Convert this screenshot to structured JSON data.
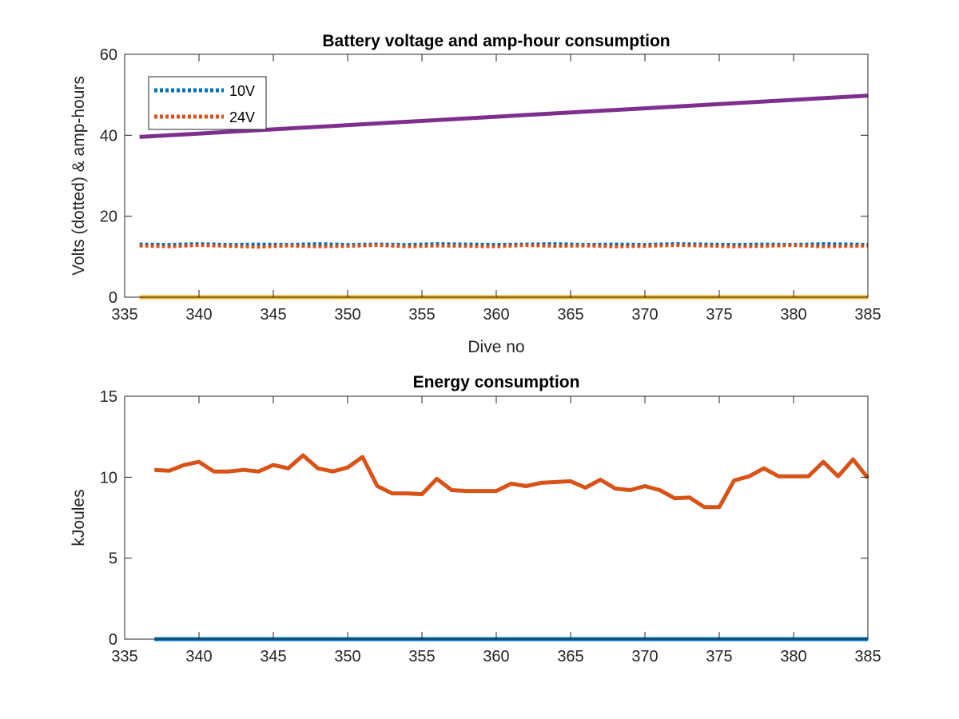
{
  "chart_data": [
    {
      "type": "line",
      "title": "Battery voltage and amp-hour consumption",
      "xlabel": "Dive no",
      "ylabel": "Volts (dotted) & amp-hours",
      "xlim": [
        335,
        385
      ],
      "ylim": [
        0,
        60
      ],
      "xticks": [
        335,
        340,
        345,
        350,
        355,
        360,
        365,
        370,
        375,
        380,
        385
      ],
      "yticks": [
        0,
        20,
        40,
        60
      ],
      "grid": false,
      "legend_position": "top-left",
      "series": [
        {
          "name": "10V",
          "style": "dotted",
          "color": "#0072BD",
          "in_legend": true,
          "x": [
            336,
            338,
            340,
            342,
            344,
            346,
            348,
            350,
            352,
            354,
            356,
            358,
            360,
            362,
            364,
            366,
            368,
            370,
            372,
            374,
            376,
            378,
            380,
            382,
            384,
            385
          ],
          "y": [
            13.1,
            13.0,
            13.2,
            13.0,
            13.1,
            13.0,
            13.2,
            13.0,
            13.1,
            13.0,
            13.2,
            13.1,
            13.0,
            13.1,
            13.2,
            13.0,
            13.1,
            13.0,
            13.2,
            13.1,
            13.0,
            13.1,
            13.0,
            13.2,
            13.1,
            13.0
          ]
        },
        {
          "name": "24V",
          "style": "dotted",
          "color": "#D95319",
          "in_legend": true,
          "x": [
            336,
            338,
            340,
            342,
            344,
            346,
            348,
            350,
            352,
            354,
            356,
            358,
            360,
            362,
            364,
            366,
            368,
            370,
            372,
            374,
            376,
            378,
            380,
            382,
            384,
            385
          ],
          "y": [
            12.7,
            12.5,
            12.8,
            12.6,
            12.4,
            12.7,
            12.5,
            12.6,
            12.8,
            12.5,
            12.7,
            12.6,
            12.5,
            12.8,
            12.6,
            12.7,
            12.5,
            12.6,
            12.8,
            12.7,
            12.5,
            12.6,
            12.8,
            12.5,
            12.6,
            12.7
          ]
        },
        {
          "name": "",
          "style": "solid",
          "color": "#EDB120",
          "in_legend": false,
          "x": [
            336,
            385
          ],
          "y": [
            0,
            0
          ]
        },
        {
          "name": "",
          "style": "solid",
          "color": "#7E2F8E",
          "in_legend": false,
          "x": [
            336,
            385
          ],
          "y": [
            39.6,
            49.8
          ]
        }
      ]
    },
    {
      "type": "line",
      "title": "Energy consumption",
      "xlabel": "",
      "ylabel": "kJoules",
      "xlim": [
        335,
        385
      ],
      "ylim": [
        0,
        15
      ],
      "xticks": [
        335,
        340,
        345,
        350,
        355,
        360,
        365,
        370,
        375,
        380,
        385
      ],
      "yticks": [
        0,
        5,
        10,
        15
      ],
      "grid": false,
      "series": [
        {
          "name": "",
          "style": "solid",
          "color": "#0072BD",
          "x": [
            337,
            385
          ],
          "y": [
            0,
            0
          ]
        },
        {
          "name": "",
          "style": "solid",
          "color": "#D95319",
          "x": [
            337,
            338,
            339,
            340,
            341,
            342,
            343,
            344,
            345,
            346,
            347,
            348,
            349,
            350,
            351,
            352,
            353,
            354,
            355,
            356,
            357,
            358,
            359,
            360,
            361,
            362,
            363,
            364,
            365,
            366,
            367,
            368,
            369,
            370,
            371,
            372,
            373,
            374,
            375,
            376,
            377,
            378,
            379,
            380,
            381,
            382,
            383,
            384,
            385
          ],
          "y": [
            10.45,
            10.4,
            10.75,
            10.95,
            10.35,
            10.35,
            10.45,
            10.35,
            10.75,
            10.55,
            11.35,
            10.55,
            10.35,
            10.6,
            11.25,
            9.45,
            9.0,
            9.0,
            8.95,
            9.9,
            9.2,
            9.15,
            9.15,
            9.15,
            9.6,
            9.45,
            9.65,
            9.7,
            9.75,
            9.35,
            9.85,
            9.3,
            9.2,
            9.45,
            9.2,
            8.7,
            8.75,
            8.15,
            8.15,
            9.8,
            10.05,
            10.55,
            10.05,
            10.05,
            10.05,
            10.95,
            10.05,
            11.1,
            9.95
          ]
        }
      ]
    }
  ]
}
